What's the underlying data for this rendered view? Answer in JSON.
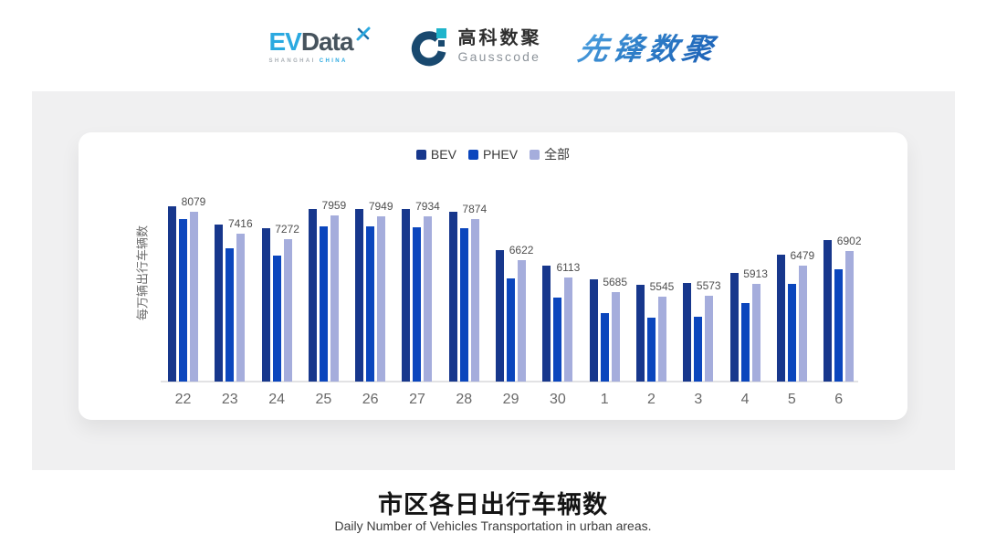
{
  "header": {
    "evdata": {
      "ev": "EV",
      "data": "Data",
      "sub_left": "SHANGHAI",
      "sub_right": "CHINA"
    },
    "gausscode": {
      "cn": "高科数聚",
      "en": "Gausscode"
    },
    "pioneer": {
      "text": "先锋数聚"
    }
  },
  "chart_data": {
    "type": "bar",
    "title": "市区各日出行车辆数",
    "subtitle": "Daily Number of Vehicles Transportation in urban areas.",
    "ylabel": "每万辆出行车辆数",
    "categories": [
      "22",
      "23",
      "24",
      "25",
      "26",
      "27",
      "28",
      "29",
      "30",
      "1",
      "2",
      "3",
      "4",
      "5",
      "6"
    ],
    "series": [
      {
        "name": "BEV",
        "key": "bev",
        "color": "#17378C",
        "values": [
          8242,
          7696,
          7578,
          8168,
          8151,
          8168,
          8078,
          6940,
          6459,
          6049,
          5894,
          5948,
          6249,
          6795,
          7223
        ]
      },
      {
        "name": "PHEV",
        "key": "phev",
        "color": "#0B46BD",
        "values": [
          7851,
          6986,
          6778,
          7652,
          7641,
          7625,
          7578,
          6096,
          5503,
          5048,
          4922,
          4930,
          5340,
          5932,
          6369
        ]
      },
      {
        "name": "全部",
        "key": "all",
        "color": "#A5ADDC",
        "values": [
          8079,
          7416,
          7272,
          7959,
          7949,
          7934,
          7874,
          6622,
          6113,
          5685,
          5545,
          5573,
          5913,
          6479,
          6902
        ]
      }
    ],
    "labeled_series": "全部",
    "axis": {
      "y_min": 3000,
      "y_max": 8500,
      "grid": false
    },
    "legend_position": "top"
  }
}
